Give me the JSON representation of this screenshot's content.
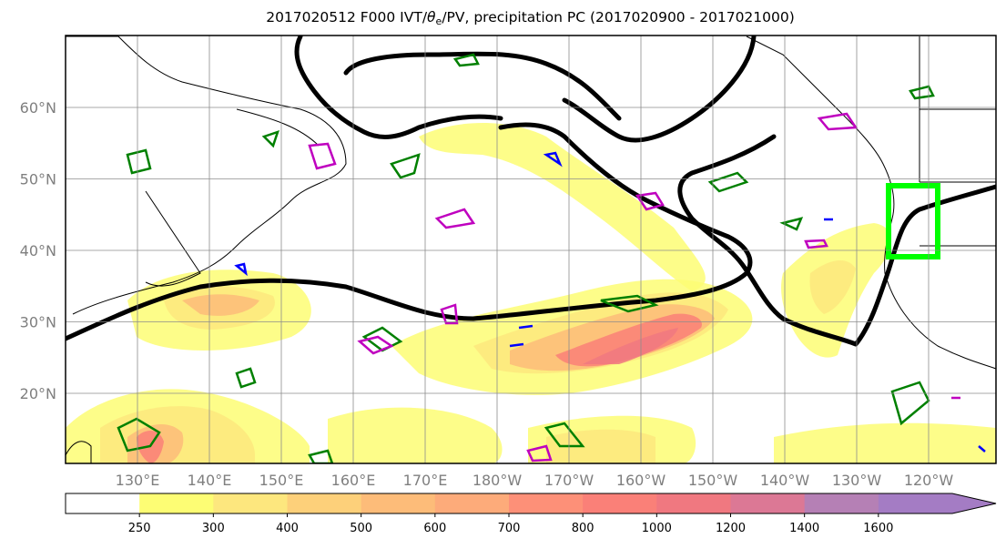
{
  "title": {
    "prefix": "2017020512 F000 IVT/",
    "theta": "θ",
    "theta_sub": "e",
    "suffix": "/PV, precipitation PC (2017020900 - 2017021000)"
  },
  "axes": {
    "lon_labels": [
      "130°E",
      "140°E",
      "150°E",
      "160°E",
      "170°E",
      "180°W",
      "170°W",
      "160°W",
      "150°W",
      "140°W",
      "130°W",
      "120°W"
    ],
    "lat_labels": [
      "60°N",
      "50°N",
      "40°N",
      "30°N",
      "20°N"
    ]
  },
  "colorbar": {
    "ticks": [
      "250",
      "300",
      "400",
      "500",
      "600",
      "700",
      "800",
      "1000",
      "1200",
      "1400",
      "1600"
    ],
    "colors": [
      "#ffffff",
      "#fdfd74",
      "#fde77e",
      "#fdd07a",
      "#fdbc79",
      "#fdab7a",
      "#fd9078",
      "#fa8078",
      "#f07880",
      "#dc7895",
      "#b580b5",
      "#a47cc4"
    ]
  },
  "colors": {
    "ivt_contour": "#000000",
    "green_contour": "#008000",
    "magenta_contour": "#bf00bf",
    "blue_contour": "#0000ff",
    "highlight_box": "#00ff00"
  }
}
